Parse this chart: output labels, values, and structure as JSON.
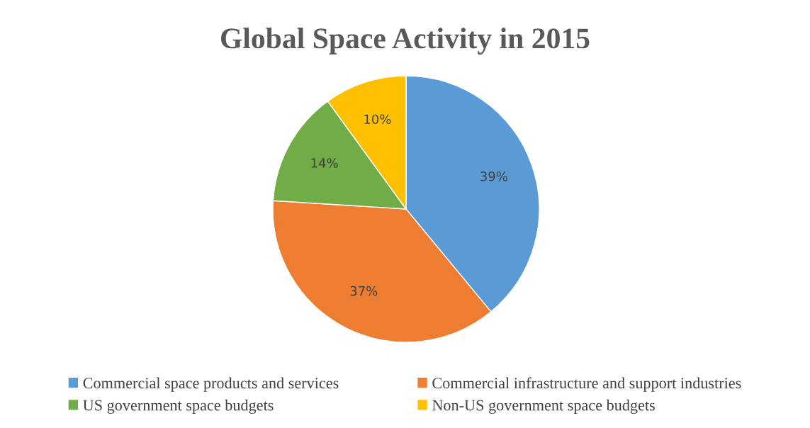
{
  "chart_data": {
    "type": "pie",
    "title": "Global Space Activity in 2015",
    "categories": [
      "Commercial space products and services",
      "Commercial infrastructure and support industries",
      "US government space budgets",
      "Non-US government space budgets"
    ],
    "values": [
      39,
      37,
      14,
      10
    ],
    "value_labels": [
      "39%",
      "37%",
      "14%",
      "10%"
    ],
    "colors": [
      "#5b9bd5",
      "#ed7d31",
      "#70ad47",
      "#ffc000"
    ],
    "legend": "bottom"
  }
}
